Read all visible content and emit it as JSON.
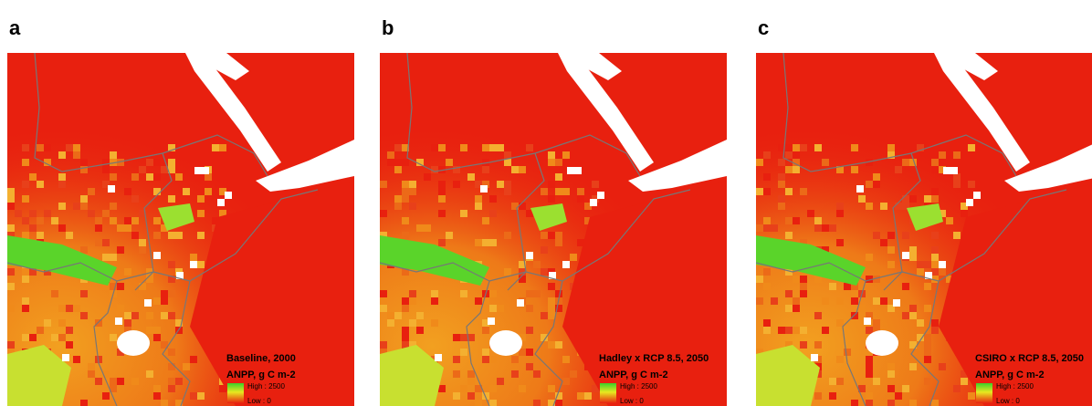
{
  "panels": [
    {
      "label": "a",
      "scenario": "Baseline, 2000"
    },
    {
      "label": "b",
      "scenario": "Hadley x RCP 8.5, 2050"
    },
    {
      "label": "c",
      "scenario": "CSIRO x RCP 8.5, 2050"
    }
  ],
  "legend": {
    "title": "ANPP, g C m-2",
    "high": "High : 2500",
    "low": "Low : 0"
  }
}
